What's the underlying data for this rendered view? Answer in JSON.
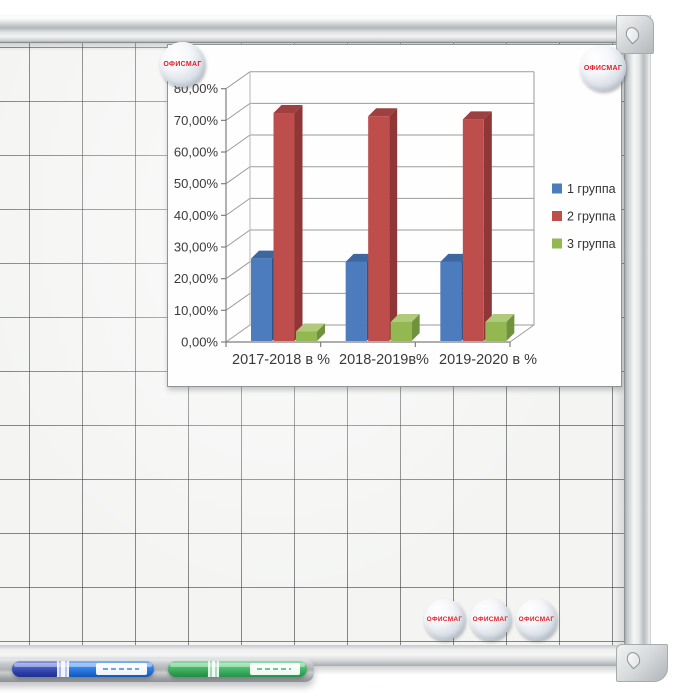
{
  "brand": {
    "magnet_label": "ОФИСМАГ",
    "magnet_text_color": "#e21e26"
  },
  "accessories": {
    "marker_blue_hex": "#2f7ce2",
    "marker_green_hex": "#46b868",
    "tray_hex": "#b0b3b6"
  },
  "chart_data": {
    "type": "bar",
    "style": "3d-clustered-column",
    "title": "",
    "xlabel": "",
    "ylabel": "",
    "categories": [
      "2017-2018 в %",
      "2018-2019в%",
      "2019-2020 в %"
    ],
    "series": [
      {
        "name": "1 группа",
        "values": [
          26,
          25,
          25
        ],
        "color_front": "#4d7cbe",
        "color_top": "#3c689f",
        "color_side": "#2f5486"
      },
      {
        "name": "2 группа",
        "values": [
          72,
          71,
          70
        ],
        "color_front": "#bd4e4c",
        "color_top": "#9d403f",
        "color_side": "#8e3736"
      },
      {
        "name": "3 группа",
        "values": [
          3,
          6,
          6
        ],
        "color_front": "#93b751",
        "color_top": "#b0c97a",
        "color_side": "#71923c"
      }
    ],
    "ylim": [
      0,
      80
    ],
    "y_ticks": [
      0,
      10,
      20,
      30,
      40,
      50,
      60,
      70,
      80
    ],
    "y_tick_labels": [
      "0,00%",
      "10,00%",
      "20,00%",
      "30,00%",
      "40,00%",
      "50,00%",
      "60,00%",
      "70,00%",
      "80,00%"
    ],
    "grid": true,
    "legend_position": "right"
  }
}
